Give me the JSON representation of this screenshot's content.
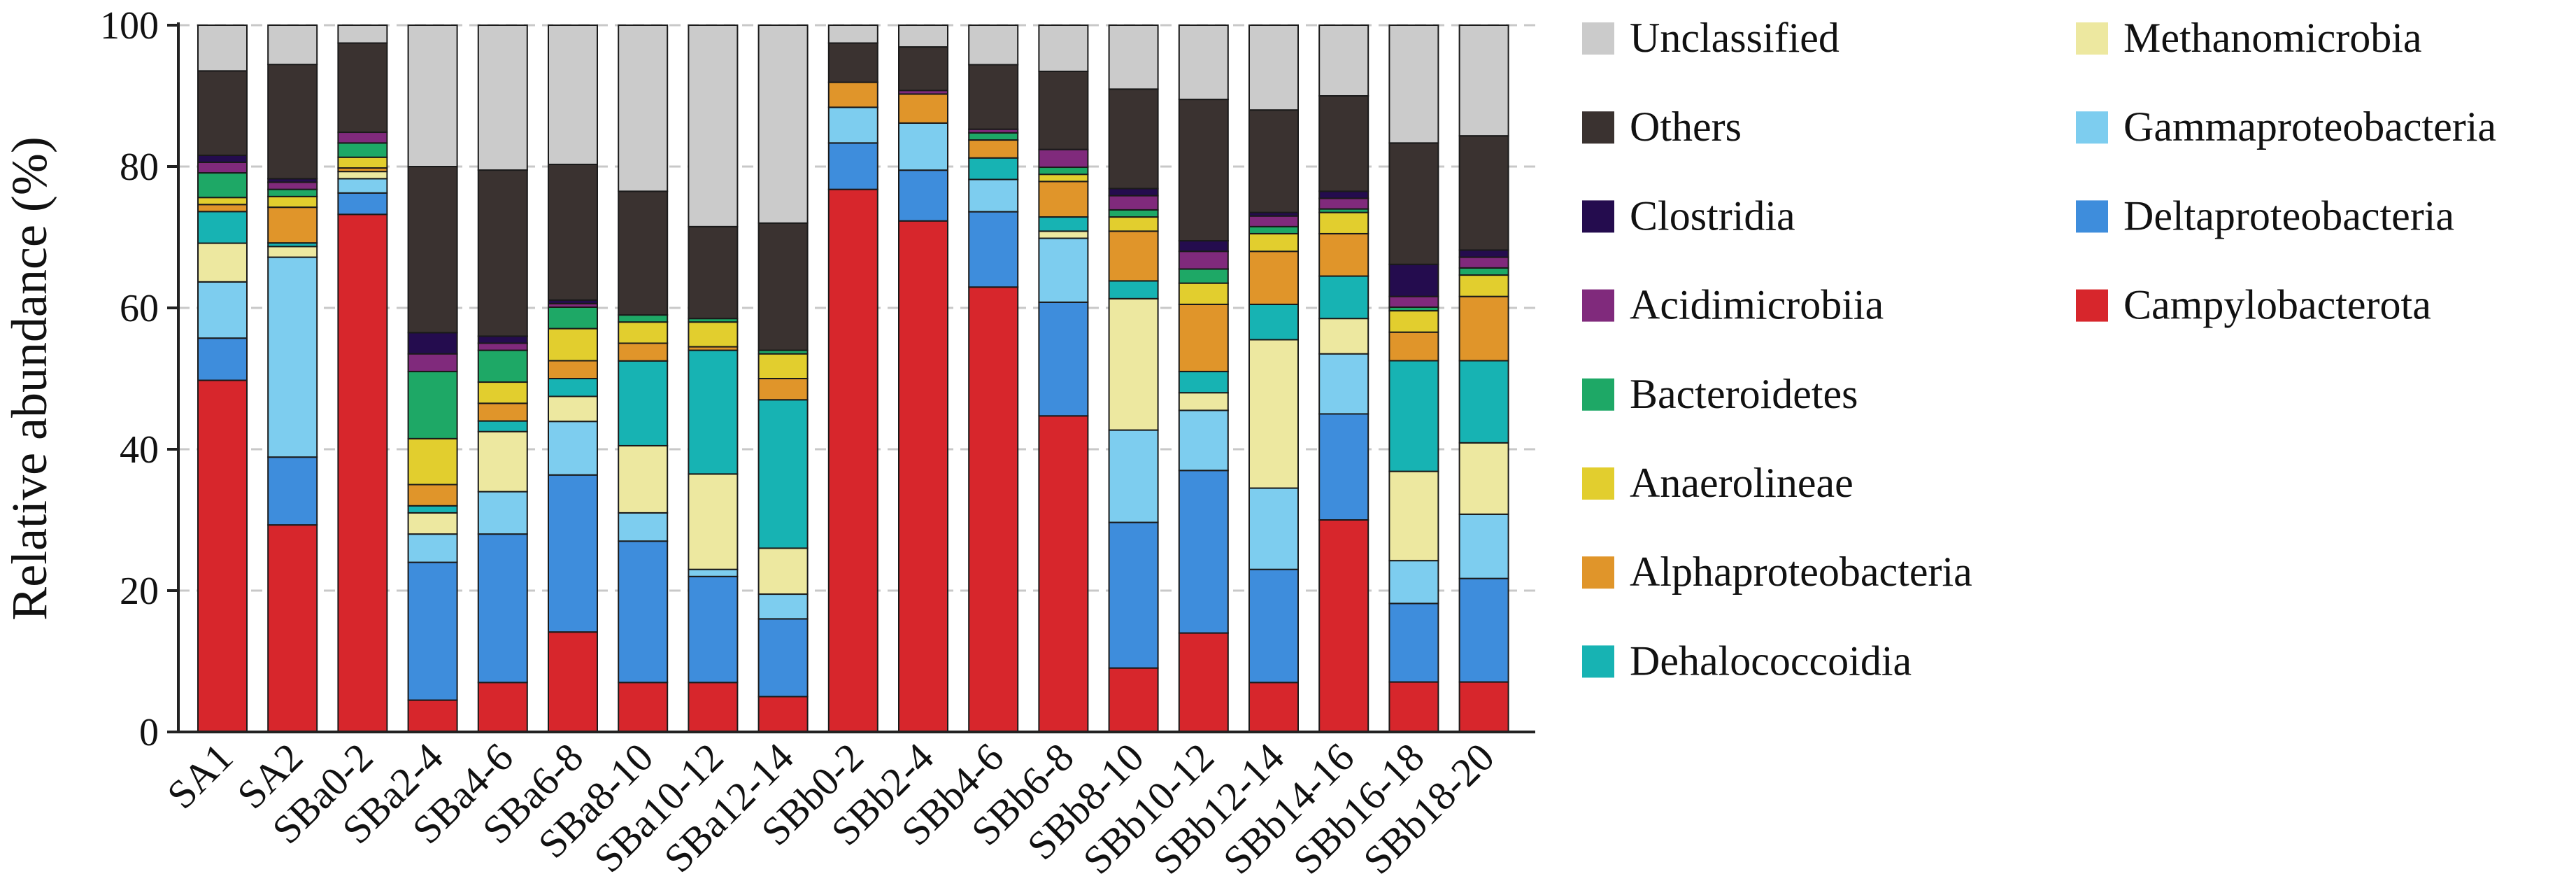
{
  "chart_data": {
    "type": "bar",
    "stacked": true,
    "title": "",
    "xlabel": "",
    "ylabel": "Relative abundance (%)",
    "ylim": [
      0,
      100
    ],
    "yticks": [
      0,
      20,
      40,
      60,
      80,
      100
    ],
    "grid": true,
    "legend_position": "right",
    "categories": [
      "SA1",
      "SA2",
      "SBa0-2",
      "SBa2-4",
      "SBa4-6",
      "SBa6-8",
      "SBa8-10",
      "SBa10-12",
      "SBa12-14",
      "SBb0-2",
      "SBb2-4",
      "SBb4-6",
      "SBb6-8",
      "SBb8-10",
      "SBb10-12",
      "SBb12-14",
      "SBb14-16",
      "SBb16-18",
      "SBb18-20"
    ],
    "series": [
      {
        "name": "Campylobacterota",
        "color": "#d7262c",
        "values": [
          50,
          29,
          72.5,
          4.5,
          7,
          14,
          7,
          7,
          5,
          76,
          70.5,
          62,
          44.5,
          9,
          14,
          7,
          30,
          7,
          7
        ]
      },
      {
        "name": "Deltaproteobacteria",
        "color": "#3e8ddc",
        "values": [
          6,
          9.5,
          3,
          19.5,
          21,
          22,
          20,
          15,
          11,
          6.5,
          7,
          10.5,
          16,
          20.5,
          23,
          16,
          15,
          11,
          14.5
        ]
      },
      {
        "name": "Gammaproteobacteria",
        "color": "#7dcdef",
        "values": [
          8,
          28,
          2,
          4,
          6,
          7.5,
          4,
          1,
          3.5,
          5,
          6.5,
          4.5,
          9,
          13,
          8.5,
          11.5,
          8.5,
          6,
          9
        ]
      },
      {
        "name": "Methanomicrobia",
        "color": "#ede8a0",
        "values": [
          5.5,
          1.5,
          1,
          3,
          8.5,
          3.5,
          9.5,
          13.5,
          6.5,
          0,
          0,
          0,
          1,
          18.5,
          2.5,
          21,
          5,
          12.5,
          10
        ]
      },
      {
        "name": "Dehalococcoidia",
        "color": "#17b3b3",
        "values": [
          4.5,
          0.5,
          0,
          1,
          1.5,
          2.5,
          12,
          17.5,
          21,
          0,
          0,
          3,
          2,
          2.5,
          3,
          5,
          6,
          15.5,
          11.5
        ]
      },
      {
        "name": "Alphaproteobacteria",
        "color": "#e0952a",
        "values": [
          1,
          5,
          0.5,
          3,
          2.5,
          2.5,
          2.5,
          0.5,
          3,
          3.5,
          4,
          2.5,
          5,
          7,
          9.5,
          7.5,
          6,
          4,
          9
        ]
      },
      {
        "name": "Anaerolineae",
        "color": "#e2ce2e",
        "values": [
          1,
          1.5,
          1.5,
          6.5,
          3,
          4.5,
          3,
          3.5,
          3.5,
          0,
          0,
          0,
          1,
          2,
          3,
          2.5,
          3,
          3,
          3
        ]
      },
      {
        "name": "Bacteroidetes",
        "color": "#1ea866",
        "values": [
          3.5,
          1,
          2,
          9.5,
          4.5,
          3,
          1,
          0.5,
          0.5,
          0,
          0,
          1,
          1,
          1,
          2,
          1,
          0.5,
          0.5,
          1
        ]
      },
      {
        "name": "Acidimicrobiia",
        "color": "#802a7c",
        "values": [
          1.5,
          1,
          1.5,
          2.5,
          1,
          0.5,
          0,
          0,
          0,
          0,
          0.5,
          0.5,
          2.5,
          2,
          2.5,
          1.5,
          1.5,
          1.5,
          1.5
        ]
      },
      {
        "name": "Clostridia",
        "color": "#240c4e",
        "values": [
          1,
          0.5,
          0,
          3,
          1,
          0.5,
          0,
          0,
          0,
          0,
          0,
          0,
          0,
          1,
          1.5,
          0.5,
          1,
          4.5,
          1
        ]
      },
      {
        "name": "Others",
        "color": "#3a3230",
        "values": [
          12,
          16,
          12.5,
          23.5,
          23.5,
          19,
          17.5,
          13,
          18,
          5.5,
          6,
          9,
          11,
          14,
          20,
          14.5,
          13.5,
          17,
          16
        ]
      },
      {
        "name": "Unclassified",
        "color": "#cbcbcb",
        "values": [
          6.5,
          5.5,
          2.5,
          20,
          20.5,
          19.5,
          23.5,
          28.5,
          28,
          2.5,
          3,
          5.5,
          6.5,
          9,
          10.5,
          12,
          10,
          16.5,
          15.5
        ]
      }
    ],
    "legend_columns": [
      [
        "Unclassified",
        "Others",
        "Clostridia",
        "Acidimicrobiia",
        "Bacteroidetes",
        "Anaerolineae",
        "Alphaproteobacteria",
        "Dehalococcoidia"
      ],
      [
        "Methanomicrobia",
        "Gammaproteobacteria",
        "Deltaproteobacteria",
        "Campylobacterota"
      ]
    ]
  }
}
